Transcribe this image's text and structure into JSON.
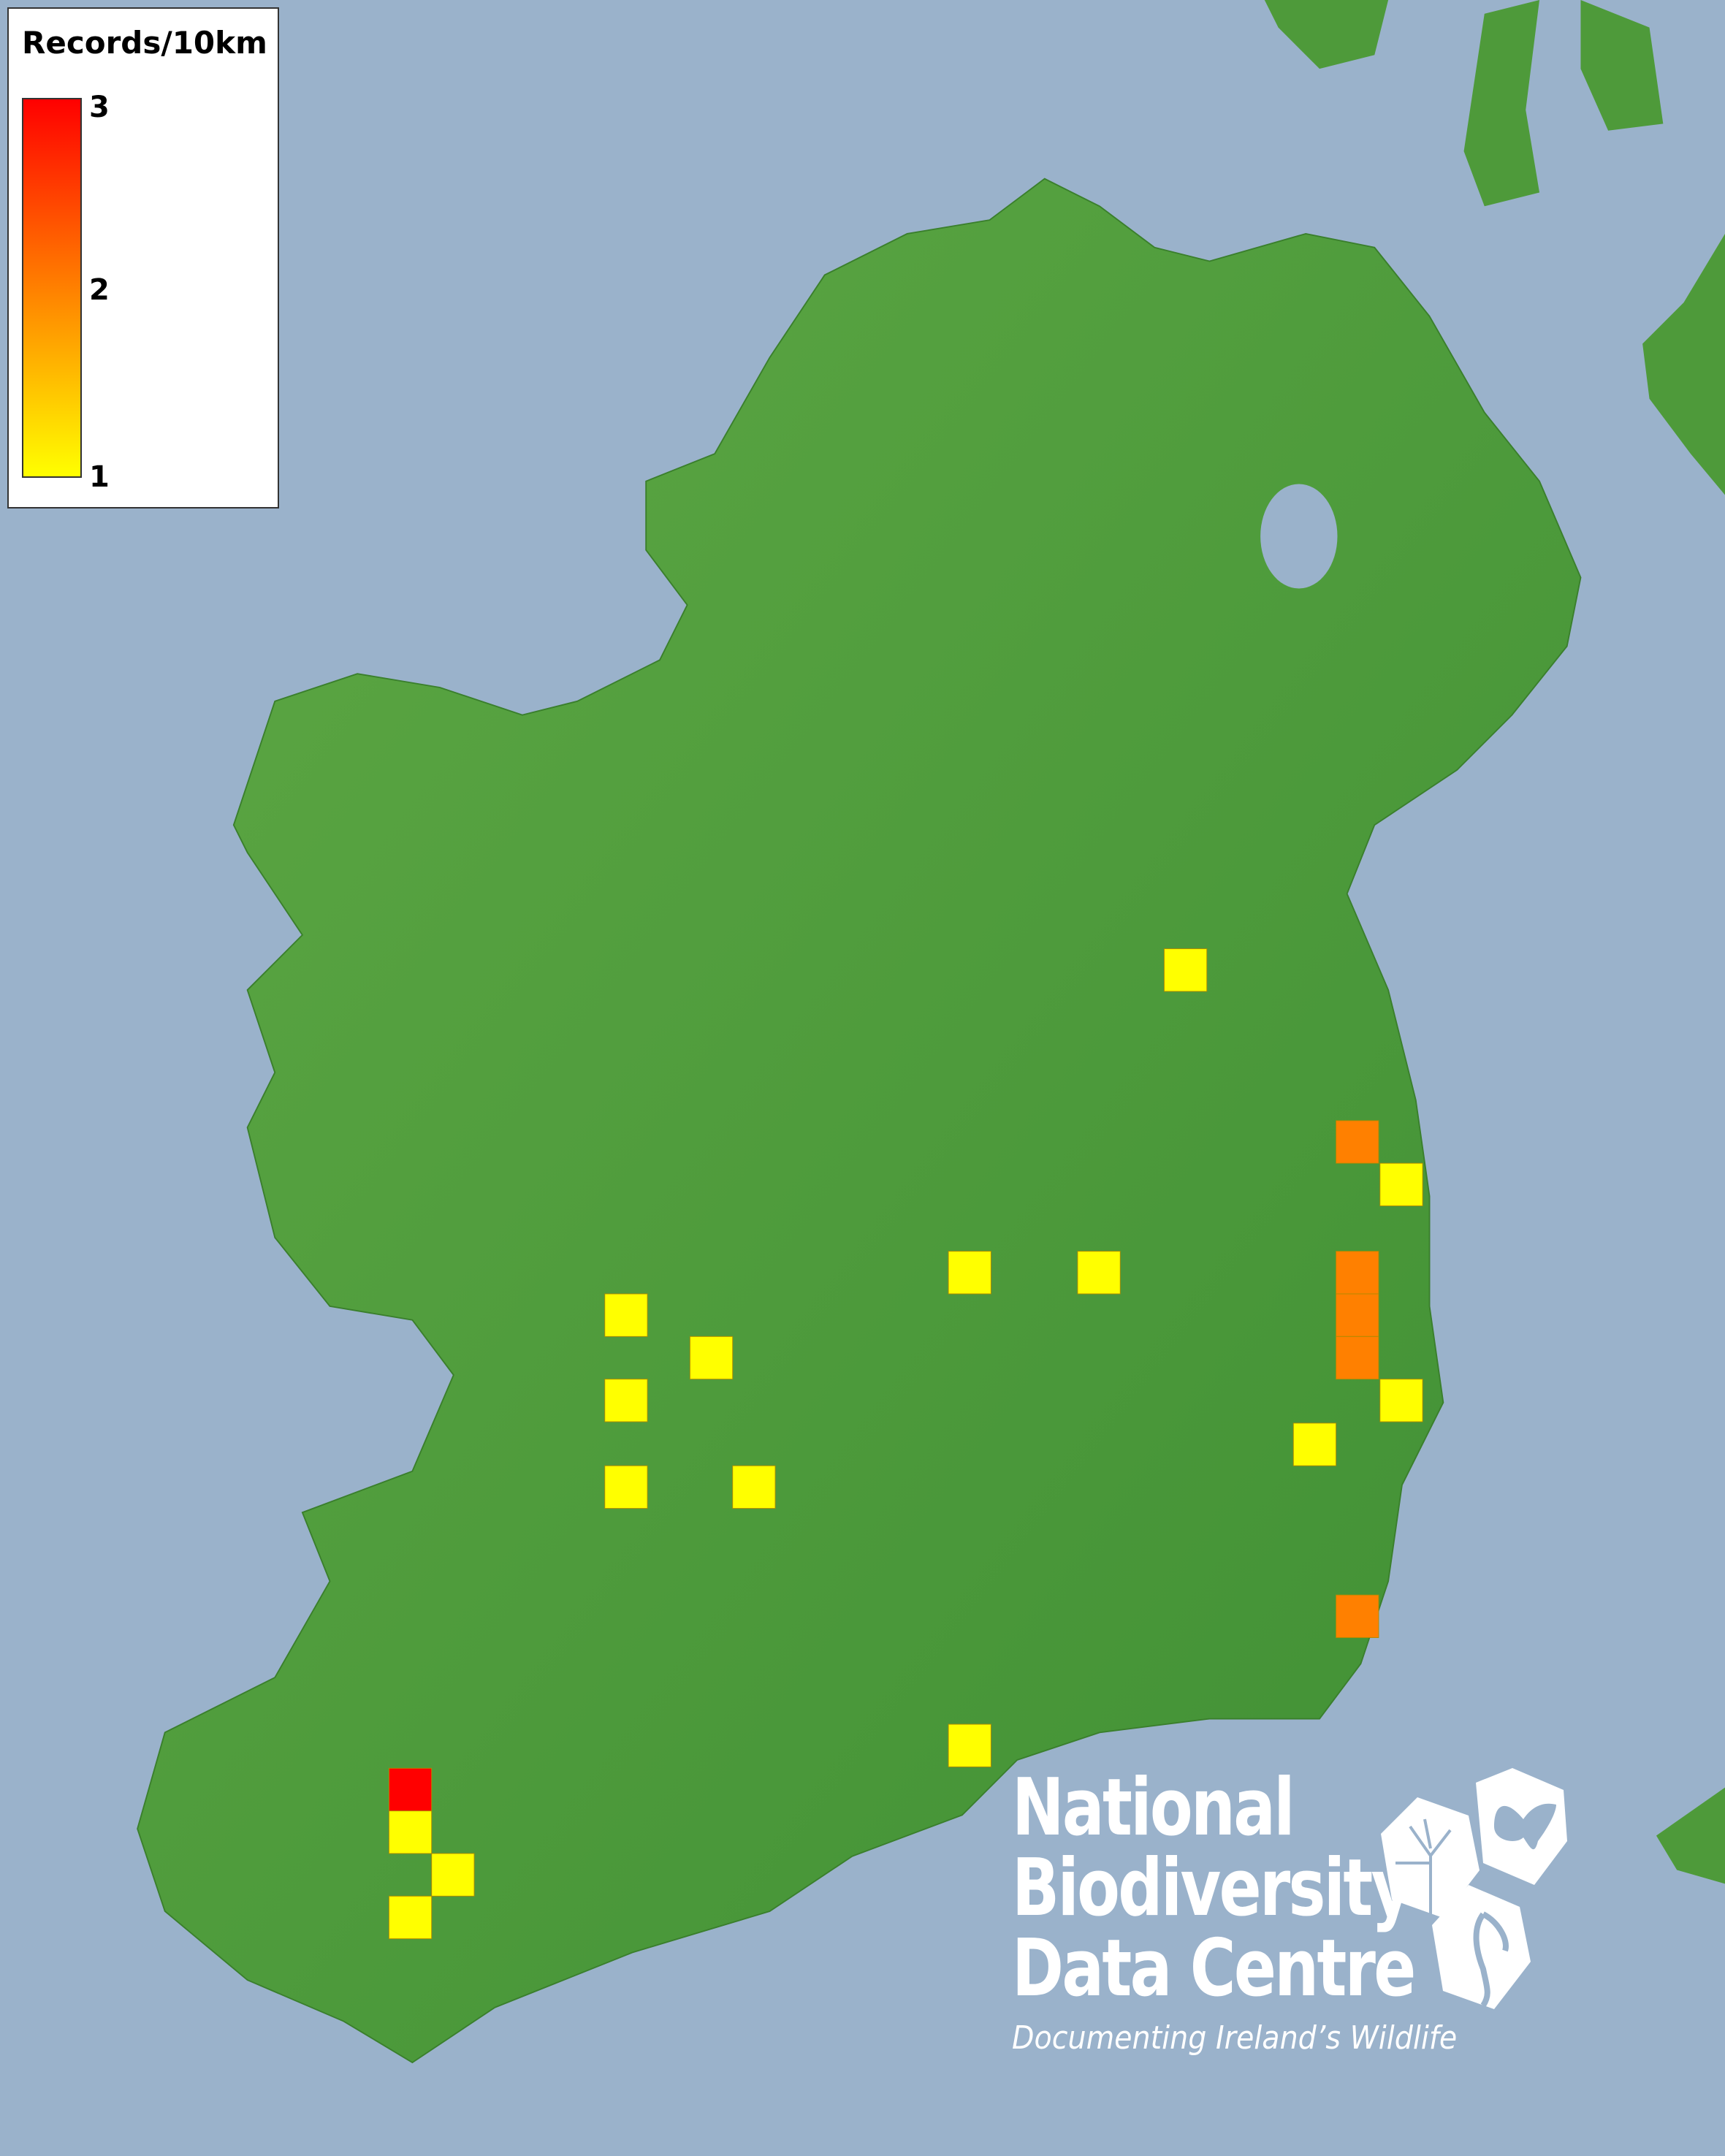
{
  "legend": {
    "title": "Records/10km",
    "ticks": [
      "3",
      "2",
      "1"
    ],
    "colors": {
      "max": "#ff0000",
      "mid": "#ff8000",
      "min": "#ffff00"
    }
  },
  "records": [
    1,
    1,
    1,
    1,
    1,
    1,
    1,
    1,
    1,
    1,
    1,
    1,
    1,
    1,
    1,
    2,
    2,
    2,
    2,
    2,
    3
  ],
  "colors": {
    "sea": "#9ab2cb",
    "land": "#4e9a3a",
    "one": "#ffff00",
    "two": "#ff8000",
    "three": "#ff0000"
  },
  "logo": {
    "line1": "National",
    "line2": "Biodiversity",
    "line3": "Data Centre",
    "tagline": "Documenting Ireland’s Wildlife",
    "icons": [
      "tree-icon",
      "butterfly-icon",
      "seahorse-icon"
    ]
  }
}
